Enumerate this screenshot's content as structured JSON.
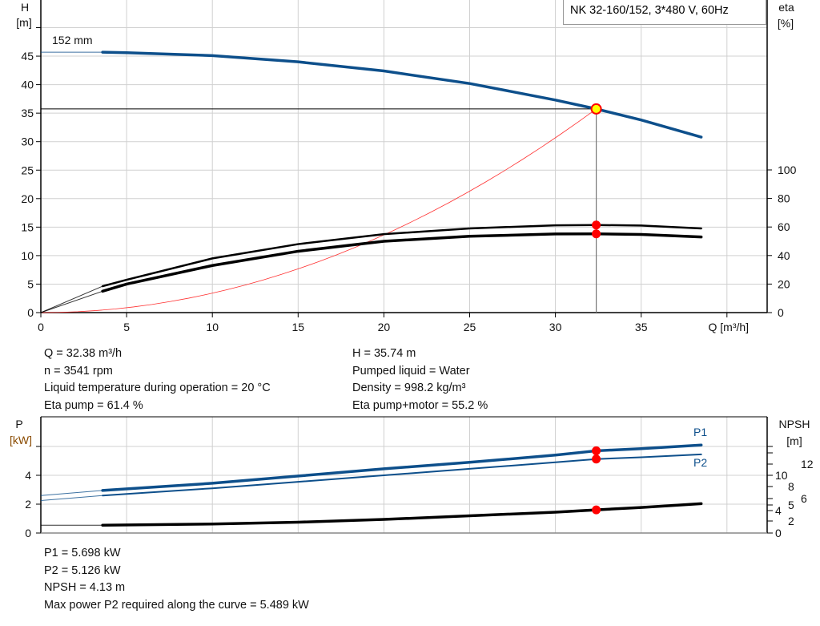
{
  "colors": {
    "head": "#0d4f8b",
    "power": "#0d4f8b",
    "eta": "#000000",
    "npsh": "#000000",
    "system": "#ff3030",
    "duty_point": "#ff0000",
    "duty_fill": "#ffff00",
    "grid": "#d0d0d0"
  },
  "legend": "NK 32-160/152, 3*480 V, 60Hz",
  "chart_data": [
    {
      "type": "line",
      "xlabel": "Q [m³/h]",
      "ylabel_left": [
        "H",
        "[m]"
      ],
      "ylabel_right": [
        "eta",
        "[%]"
      ],
      "xlim": [
        0,
        42
      ],
      "ylim_left": [
        0,
        55
      ],
      "ylim_right_eta": [
        0,
        137.5
      ],
      "x_ticks": [
        "0",
        "5",
        "10",
        "15",
        "20",
        "25",
        "30",
        "35"
      ],
      "y_ticks_left": [
        "0",
        "5",
        "10",
        "15",
        "20",
        "25",
        "30",
        "35",
        "40",
        "45"
      ],
      "y_ticks_right": [
        "0",
        "20",
        "40",
        "60",
        "80",
        "100"
      ],
      "grid": true,
      "curve_label": "152 mm",
      "series": [
        {
          "id": "H",
          "axis": "left",
          "x": [
            0,
            3.6,
            5,
            10,
            15,
            20,
            25,
            30,
            32.38,
            35,
            38.5
          ],
          "y": [
            45.7,
            45.7,
            45.6,
            45.1,
            44.0,
            42.4,
            40.2,
            37.3,
            35.74,
            33.8,
            30.8
          ]
        },
        {
          "id": "eta_pump",
          "axis": "right",
          "x": [
            0,
            3.6,
            5,
            10,
            15,
            20,
            25,
            30,
            32.38,
            35,
            38.5
          ],
          "y": [
            0,
            18.5,
            23,
            38,
            48,
            55,
            59,
            61.2,
            61.4,
            61,
            59
          ]
        },
        {
          "id": "eta_pump_motor",
          "axis": "right",
          "x": [
            0,
            3.6,
            5,
            10,
            15,
            20,
            25,
            30,
            32.38,
            35,
            38.5
          ],
          "y": [
            0,
            15,
            20,
            33,
            43,
            50,
            53.5,
            55.1,
            55.2,
            54.8,
            53
          ]
        }
      ],
      "duty_point": {
        "Q": 32.38,
        "H": 35.74,
        "eta_pump": 61.4,
        "eta_pump_motor": 55.2
      }
    },
    {
      "type": "line",
      "xlim": [
        0,
        42
      ],
      "ylabel_left": [
        "P",
        "[kW]"
      ],
      "ylabel_right": [
        "NPSH",
        "[m]"
      ],
      "y_ticks_left": [
        "0",
        "2",
        "4"
      ],
      "y_ticks_right": [
        "0",
        "2",
        "4",
        "5",
        "6",
        "8",
        "10",
        "12"
      ],
      "grid": true,
      "series": [
        {
          "id": "P1",
          "name": "P1",
          "axis": "left",
          "x": [
            0,
            3.6,
            10,
            15,
            20,
            25,
            30,
            32.38,
            35,
            38.5
          ],
          "y": [
            2.6,
            2.95,
            3.45,
            3.95,
            4.45,
            4.9,
            5.4,
            5.698,
            5.85,
            6.1
          ]
        },
        {
          "id": "P2",
          "name": "P2",
          "axis": "left",
          "x": [
            0,
            3.6,
            10,
            15,
            20,
            25,
            30,
            32.38,
            35,
            38.5
          ],
          "y": [
            2.25,
            2.6,
            3.1,
            3.55,
            4.0,
            4.45,
            4.9,
            5.126,
            5.25,
            5.45
          ]
        },
        {
          "id": "NPSH",
          "axis": "right",
          "x": [
            0,
            3.6,
            10,
            15,
            20,
            25,
            30,
            32.38,
            35,
            38.5
          ],
          "y": [
            1.3,
            1.3,
            1.5,
            1.8,
            2.3,
            3.0,
            3.7,
            4.13,
            4.55,
            5.2
          ]
        }
      ],
      "duty_point": {
        "Q": 32.38,
        "P1": 5.698,
        "P2": 5.126,
        "NPSH": 4.13
      }
    }
  ],
  "info_top": {
    "left": [
      "Q = 32.38 m³/h",
      "n = 3541 rpm",
      "Liquid temperature during operation = 20 °C",
      "Eta pump = 61.4 %"
    ],
    "right": [
      "H = 35.74 m",
      "Pumped liquid = Water",
      "Density = 998.2 kg/m³",
      "Eta pump+motor = 55.2 %"
    ]
  },
  "info_bottom": [
    "P1 = 5.698 kW",
    "P2 = 5.126 kW",
    "NPSH = 4.13 m",
    "Max power P2 required along the curve = 5.489 kW"
  ]
}
